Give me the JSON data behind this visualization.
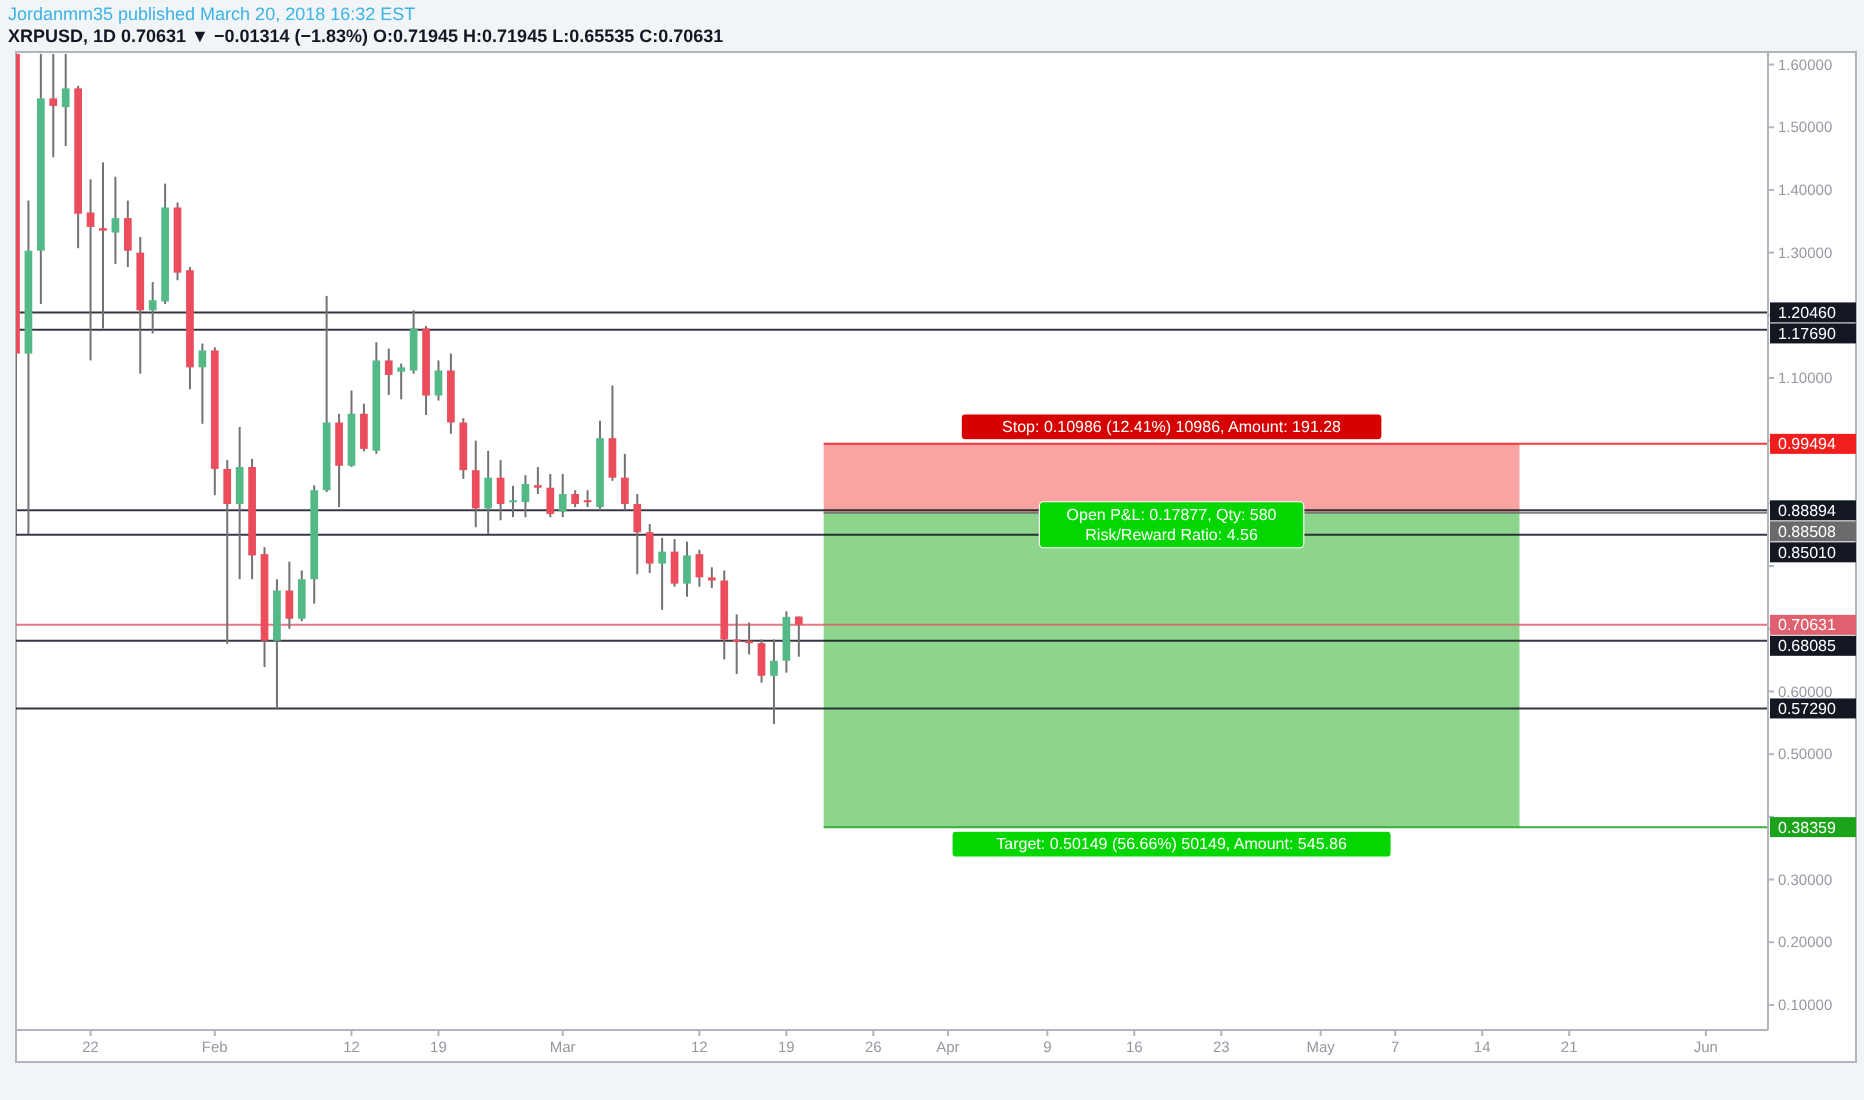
{
  "chart_data": {
    "type": "candlestick",
    "title": "Jordanmm35 published March 20, 2018 16:32 EST",
    "subtitle": "XRPUSD, 1D 0.70631 ▼ −0.01314 (−1.83%) O:0.71945 H:0.71945 L:0.65535 C:0.70631",
    "x": [
      "2018-01-16",
      "2018-01-17",
      "2018-01-18",
      "2018-01-19",
      "2018-01-20",
      "2018-01-21",
      "2018-01-22",
      "2018-01-23",
      "2018-01-24",
      "2018-01-25",
      "2018-01-26",
      "2018-01-27",
      "2018-01-28",
      "2018-01-29",
      "2018-01-30",
      "2018-01-31",
      "2018-02-01",
      "2018-02-02",
      "2018-02-03",
      "2018-02-04",
      "2018-02-05",
      "2018-02-06",
      "2018-02-07",
      "2018-02-08",
      "2018-02-09",
      "2018-02-10",
      "2018-02-11",
      "2018-02-12",
      "2018-02-13",
      "2018-02-14",
      "2018-02-15",
      "2018-02-16",
      "2018-02-17",
      "2018-02-18",
      "2018-02-19",
      "2018-02-20",
      "2018-02-21",
      "2018-02-22",
      "2018-02-23",
      "2018-02-24",
      "2018-02-25",
      "2018-02-26",
      "2018-02-27",
      "2018-02-28",
      "2018-03-01",
      "2018-03-02",
      "2018-03-03",
      "2018-03-04",
      "2018-03-05",
      "2018-03-06",
      "2018-03-07",
      "2018-03-08",
      "2018-03-09",
      "2018-03-10",
      "2018-03-11",
      "2018-03-12",
      "2018-03-13",
      "2018-03-14",
      "2018-03-15",
      "2018-03-16",
      "2018-03-17",
      "2018-03-18",
      "2018-03-19",
      "2018-03-20"
    ],
    "ohlc": [
      [
        1.617,
        1.617,
        0.851,
        1.139
      ],
      [
        1.139,
        1.383,
        0.851,
        1.303
      ],
      [
        1.303,
        1.617,
        1.218,
        1.546
      ],
      [
        1.546,
        1.617,
        1.452,
        1.534
      ],
      [
        1.532,
        1.617,
        1.47,
        1.562
      ],
      [
        1.562,
        1.566,
        1.307,
        1.362
      ],
      [
        1.364,
        1.417,
        1.128,
        1.341
      ],
      [
        1.339,
        1.444,
        1.179,
        1.335
      ],
      [
        1.332,
        1.421,
        1.282,
        1.355
      ],
      [
        1.355,
        1.383,
        1.277,
        1.303
      ],
      [
        1.3,
        1.325,
        1.107,
        1.208
      ],
      [
        1.208,
        1.253,
        1.171,
        1.224
      ],
      [
        1.222,
        1.41,
        1.218,
        1.372
      ],
      [
        1.372,
        1.38,
        1.256,
        1.268
      ],
      [
        1.272,
        1.277,
        1.082,
        1.117
      ],
      [
        1.117,
        1.155,
        1.027,
        1.144
      ],
      [
        1.144,
        1.149,
        0.913,
        0.955
      ],
      [
        0.955,
        0.969,
        0.676,
        0.899
      ],
      [
        0.899,
        1.022,
        0.779,
        0.958
      ],
      [
        0.958,
        0.971,
        0.779,
        0.817
      ],
      [
        0.819,
        0.83,
        0.639,
        0.681
      ],
      [
        0.681,
        0.779,
        0.573,
        0.761
      ],
      [
        0.761,
        0.807,
        0.7,
        0.716
      ],
      [
        0.716,
        0.793,
        0.712,
        0.779
      ],
      [
        0.779,
        0.929,
        0.74,
        0.921
      ],
      [
        0.921,
        1.231,
        0.918,
        1.029
      ],
      [
        1.029,
        1.043,
        0.894,
        0.96
      ],
      [
        0.96,
        1.08,
        0.958,
        1.043
      ],
      [
        1.043,
        1.059,
        0.983,
        0.987
      ],
      [
        0.984,
        1.157,
        0.979,
        1.128
      ],
      [
        1.128,
        1.147,
        1.073,
        1.105
      ],
      [
        1.11,
        1.123,
        1.066,
        1.117
      ],
      [
        1.112,
        1.208,
        1.107,
        1.179
      ],
      [
        1.179,
        1.183,
        1.041,
        1.072
      ],
      [
        1.072,
        1.128,
        1.064,
        1.112
      ],
      [
        1.112,
        1.139,
        1.011,
        1.029
      ],
      [
        1.029,
        1.036,
        0.939,
        0.953
      ],
      [
        0.953,
        1.0,
        0.862,
        0.892
      ],
      [
        0.892,
        0.984,
        0.851,
        0.941
      ],
      [
        0.941,
        0.969,
        0.873,
        0.899
      ],
      [
        0.902,
        0.928,
        0.878,
        0.905
      ],
      [
        0.902,
        0.945,
        0.878,
        0.931
      ],
      [
        0.929,
        0.958,
        0.915,
        0.925
      ],
      [
        0.925,
        0.947,
        0.878,
        0.883
      ],
      [
        0.887,
        0.947,
        0.878,
        0.915
      ],
      [
        0.915,
        0.921,
        0.894,
        0.899
      ],
      [
        0.905,
        0.921,
        0.894,
        0.903
      ],
      [
        0.894,
        1.032,
        0.889,
        1.004
      ],
      [
        1.004,
        1.088,
        0.936,
        0.941
      ],
      [
        0.941,
        0.979,
        0.889,
        0.899
      ],
      [
        0.899,
        0.915,
        0.787,
        0.854
      ],
      [
        0.854,
        0.867,
        0.789,
        0.804
      ],
      [
        0.804,
        0.845,
        0.73,
        0.823
      ],
      [
        0.823,
        0.843,
        0.767,
        0.772
      ],
      [
        0.772,
        0.839,
        0.751,
        0.817
      ],
      [
        0.819,
        0.826,
        0.767,
        0.782
      ],
      [
        0.782,
        0.798,
        0.765,
        0.777
      ],
      [
        0.777,
        0.793,
        0.651,
        0.683
      ],
      [
        0.683,
        0.723,
        0.628,
        0.679
      ],
      [
        0.681,
        0.71,
        0.659,
        0.677
      ],
      [
        0.677,
        0.683,
        0.614,
        0.625
      ],
      [
        0.625,
        0.683,
        0.548,
        0.649
      ],
      [
        0.649,
        0.728,
        0.63,
        0.719
      ],
      [
        0.71945,
        0.71945,
        0.65535,
        0.70631
      ]
    ],
    "colors": [
      "#eb4d5c",
      "#53b987",
      "#53b987",
      "#eb4d5c",
      "#53b987",
      "#eb4d5c",
      "#eb4d5c",
      "#eb4d5c",
      "#53b987",
      "#eb4d5c",
      "#eb4d5c",
      "#53b987",
      "#53b987",
      "#eb4d5c",
      "#eb4d5c",
      "#53b987",
      "#eb4d5c",
      "#eb4d5c",
      "#53b987",
      "#eb4d5c",
      "#eb4d5c",
      "#53b987",
      "#eb4d5c",
      "#53b987",
      "#53b987",
      "#53b987",
      "#eb4d5c",
      "#53b987",
      "#eb4d5c",
      "#53b987",
      "#eb4d5c",
      "#53b987",
      "#53b987",
      "#eb4d5c",
      "#53b987",
      "#eb4d5c",
      "#eb4d5c",
      "#eb4d5c",
      "#53b987",
      "#eb4d5c",
      "#53b987",
      "#53b987",
      "#eb4d5c",
      "#eb4d5c",
      "#53b987",
      "#eb4d5c",
      "#eb4d5c",
      "#53b987",
      "#eb4d5c",
      "#eb4d5c",
      "#eb4d5c",
      "#eb4d5c",
      "#53b987",
      "#eb4d5c",
      "#53b987",
      "#eb4d5c",
      "#eb4d5c",
      "#eb4d5c",
      "#eb4d5c",
      "#eb4d5c",
      "#eb4d5c",
      "#53b987",
      "#53b987",
      "#eb4d5c"
    ],
    "xlim": [
      "2018-01-16",
      "2018-06-06"
    ],
    "xticks": [
      {
        "value": "2018-01-22",
        "label": "22"
      },
      {
        "value": "2018-02-01",
        "label": "Feb"
      },
      {
        "value": "2018-02-12",
        "label": "12"
      },
      {
        "value": "2018-02-19",
        "label": "19"
      },
      {
        "value": "2018-03-01",
        "label": "Mar"
      },
      {
        "value": "2018-03-12",
        "label": "12"
      },
      {
        "value": "2018-03-19",
        "label": "19"
      },
      {
        "value": "2018-03-26",
        "label": "26"
      },
      {
        "value": "2018-04-01",
        "label": "Apr"
      },
      {
        "value": "2018-04-09",
        "label": "9"
      },
      {
        "value": "2018-04-16",
        "label": "16"
      },
      {
        "value": "2018-04-23",
        "label": "23"
      },
      {
        "value": "2018-05-01",
        "label": "May"
      },
      {
        "value": "2018-05-07",
        "label": "7"
      },
      {
        "value": "2018-05-14",
        "label": "14"
      },
      {
        "value": "2018-05-21",
        "label": "21"
      },
      {
        "value": "2018-06-01",
        "label": "Jun"
      }
    ],
    "ylim": [
      0.06,
      1.62
    ],
    "yticks": [
      {
        "value": 0.1,
        "label": "0.10000"
      },
      {
        "value": 0.2,
        "label": "0.20000"
      },
      {
        "value": 0.3,
        "label": "0.30000"
      },
      {
        "value": 0.4,
        "label": null
      },
      {
        "value": 0.5,
        "label": "0.50000"
      },
      {
        "value": 0.6,
        "label": "0.60000"
      },
      {
        "value": 0.7,
        "label": null
      },
      {
        "value": 0.8,
        "label": null
      },
      {
        "value": 0.9,
        "label": null
      },
      {
        "value": 1.0,
        "label": null
      },
      {
        "value": 1.1,
        "label": "1.10000"
      },
      {
        "value": 1.2,
        "label": null
      },
      {
        "value": 1.3,
        "label": "1.30000"
      },
      {
        "value": 1.4,
        "label": "1.40000"
      },
      {
        "value": 1.5,
        "label": "1.50000"
      },
      {
        "value": 1.6,
        "label": "1.60000"
      }
    ],
    "ref_lines": [
      {
        "axis": "y",
        "value": 1.2046,
        "label": "1.20460",
        "color": "#131722",
        "line_style": "solid"
      },
      {
        "axis": "y",
        "value": 1.1769,
        "label": "1.17690",
        "color": "#131722",
        "line_style": "solid"
      },
      {
        "axis": "y",
        "value": 0.99494,
        "label": "0.99494",
        "color": "#f21d1d",
        "line_style": "solid"
      },
      {
        "axis": "y",
        "value": 0.88894,
        "label": "0.88894",
        "color": "#131722",
        "line_style": "solid"
      },
      {
        "axis": "y",
        "value": 0.88508,
        "label": "0.88508",
        "color": "#6b6b6b",
        "line_style": "solid"
      },
      {
        "axis": "y",
        "value": 0.8501,
        "label": "0.85010",
        "color": "#131722",
        "line_style": "solid"
      },
      {
        "axis": "y",
        "value": 0.70631,
        "label": "0.70631",
        "color": "#e0606f",
        "line_style": "solid"
      },
      {
        "axis": "y",
        "value": 0.68085,
        "label": "0.68085",
        "color": "#131722",
        "line_style": "solid"
      },
      {
        "axis": "y",
        "value": 0.5729,
        "label": "0.57290",
        "color": "#131722",
        "line_style": "solid"
      },
      {
        "axis": "y",
        "value": 0.38359,
        "label": "0.38359",
        "color": "#1ca31c",
        "line_style": "solid"
      }
    ],
    "bands": [
      {
        "axis": "y",
        "from": 0.88508,
        "to": 0.99494,
        "color": "#f9a3a3"
      },
      {
        "axis": "y",
        "from": 0.38359,
        "to": 0.88508,
        "color": "#8dd58c"
      }
    ],
    "annotations": [
      {
        "text": "Stop: 0.10986 (12.41%) 10986, Amount: 191.28",
        "x": "2018-04-19",
        "y": 0.99494
      },
      {
        "text": "Open P&L: 0.17877, Qty: 580\nRisk/Reward Ratio: 4.56",
        "x": "2018-04-19",
        "y": 0.88508
      },
      {
        "text": "Target: 0.50149 (56.66%) 50149, Amount: 545.86",
        "x": "2018-04-19",
        "y": 0.38359
      }
    ]
  }
}
